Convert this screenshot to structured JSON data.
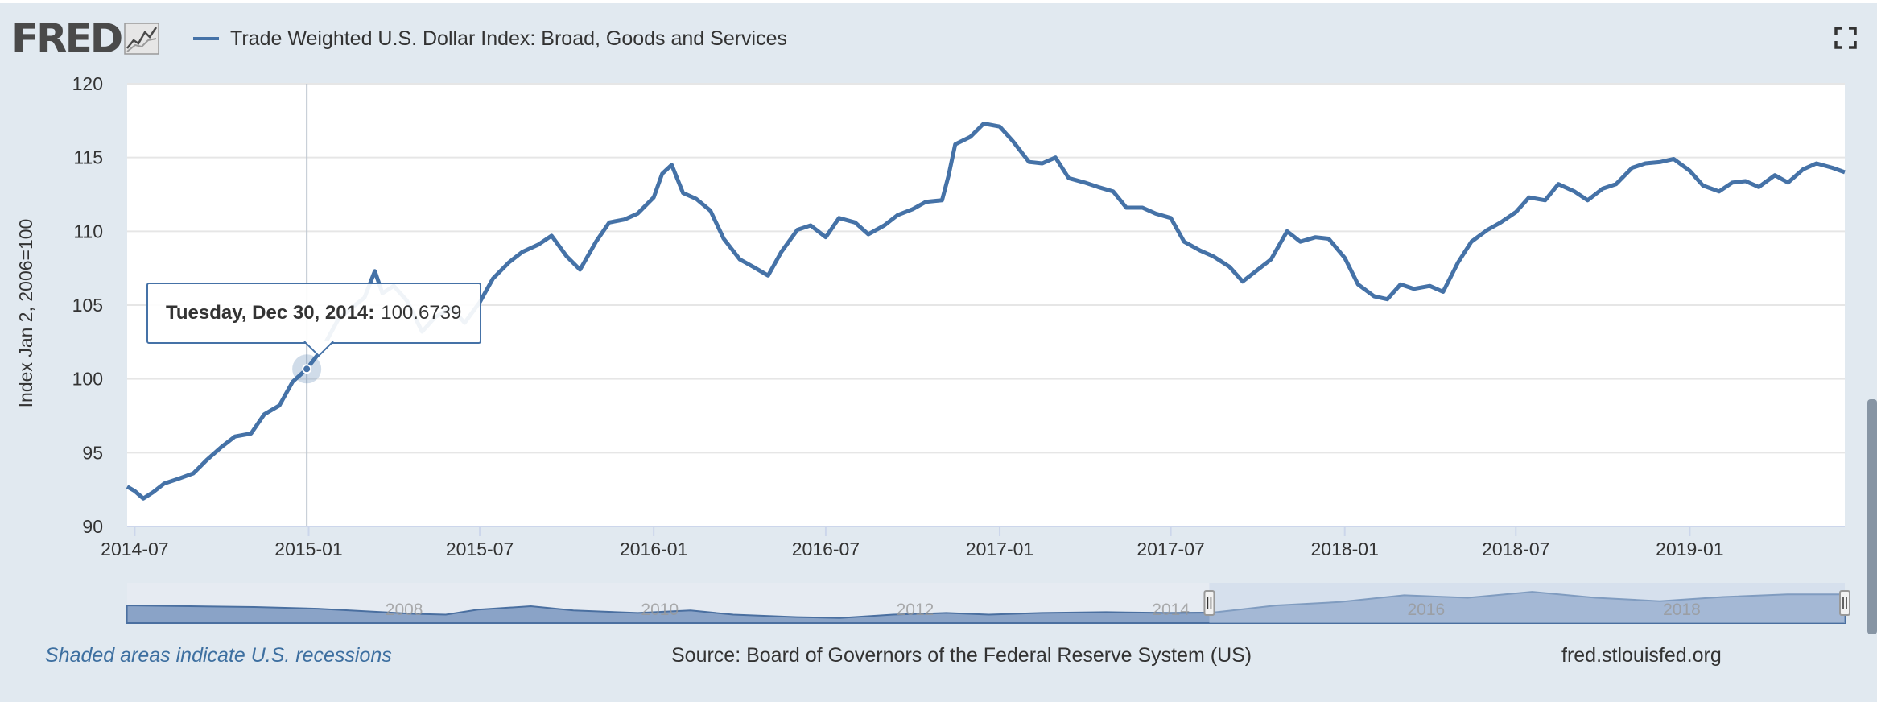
{
  "header": {
    "logo_text": "FRED",
    "series_title": "Trade Weighted U.S. Dollar Index: Broad, Goods and Services",
    "fullscreen_icon": "fullscreen-expand-icon"
  },
  "colors": {
    "line": "#4572a7",
    "background": "#e1e9f0",
    "plot_background": "#ffffff",
    "navigator_fill": "#8aa3c7",
    "navigator_mask": "#c4d2e6"
  },
  "tooltip": {
    "date": "Tuesday, Dec 30, 2014:",
    "value": "100.6739",
    "point": {
      "x": "2014-12-30",
      "y": 100.6739
    }
  },
  "chart_data": {
    "type": "line",
    "title": "",
    "xlabel": "",
    "ylabel": "Index Jan 2, 2006=100",
    "x_type": "date",
    "xlim": [
      "2014-06-23",
      "2019-06-14"
    ],
    "ylim": [
      90,
      120
    ],
    "yticks": [
      90,
      95,
      100,
      105,
      110,
      115,
      120
    ],
    "xticks": [
      "2014-07",
      "2015-01",
      "2015-07",
      "2016-01",
      "2016-07",
      "2017-01",
      "2017-07",
      "2018-01",
      "2018-07",
      "2019-01"
    ],
    "grid": true,
    "series": [
      {
        "name": "Trade Weighted U.S. Dollar Index: Broad, Goods and Services",
        "points": [
          [
            "2014-06-23",
            92.7
          ],
          [
            "2014-07-01",
            92.4
          ],
          [
            "2014-07-10",
            91.9
          ],
          [
            "2014-07-20",
            92.3
          ],
          [
            "2014-08-01",
            92.9
          ],
          [
            "2014-08-15",
            93.2
          ],
          [
            "2014-09-01",
            93.6
          ],
          [
            "2014-09-15",
            94.5
          ],
          [
            "2014-10-01",
            95.4
          ],
          [
            "2014-10-15",
            96.1
          ],
          [
            "2014-11-01",
            96.3
          ],
          [
            "2014-11-15",
            97.6
          ],
          [
            "2014-12-01",
            98.2
          ],
          [
            "2014-12-15",
            99.8
          ],
          [
            "2014-12-30",
            100.6739
          ],
          [
            "2015-01-15",
            102.0
          ],
          [
            "2015-02-01",
            104.0
          ],
          [
            "2015-02-15",
            104.8
          ],
          [
            "2015-03-01",
            105.5
          ],
          [
            "2015-03-12",
            107.3
          ],
          [
            "2015-03-20",
            105.8
          ],
          [
            "2015-04-01",
            106.3
          ],
          [
            "2015-04-15",
            105.3
          ],
          [
            "2015-05-01",
            103.2
          ],
          [
            "2015-05-15",
            104.2
          ],
          [
            "2015-06-01",
            104.8
          ],
          [
            "2015-06-15",
            103.8
          ],
          [
            "2015-07-01",
            105.2
          ],
          [
            "2015-07-15",
            106.8
          ],
          [
            "2015-08-01",
            107.9
          ],
          [
            "2015-08-15",
            108.6
          ],
          [
            "2015-09-01",
            109.1
          ],
          [
            "2015-09-15",
            109.7
          ],
          [
            "2015-10-01",
            108.3
          ],
          [
            "2015-10-15",
            107.4
          ],
          [
            "2015-11-01",
            109.3
          ],
          [
            "2015-11-15",
            110.6
          ],
          [
            "2015-12-01",
            110.8
          ],
          [
            "2015-12-15",
            111.2
          ],
          [
            "2016-01-01",
            112.3
          ],
          [
            "2016-01-10",
            113.9
          ],
          [
            "2016-01-20",
            114.5
          ],
          [
            "2016-02-01",
            112.6
          ],
          [
            "2016-02-15",
            112.2
          ],
          [
            "2016-03-01",
            111.4
          ],
          [
            "2016-03-15",
            109.5
          ],
          [
            "2016-04-01",
            108.1
          ],
          [
            "2016-04-15",
            107.6
          ],
          [
            "2016-05-01",
            107.0
          ],
          [
            "2016-05-15",
            108.6
          ],
          [
            "2016-06-01",
            110.1
          ],
          [
            "2016-06-15",
            110.4
          ],
          [
            "2016-07-01",
            109.6
          ],
          [
            "2016-07-15",
            110.9
          ],
          [
            "2016-08-01",
            110.6
          ],
          [
            "2016-08-15",
            109.8
          ],
          [
            "2016-09-01",
            110.4
          ],
          [
            "2016-09-15",
            111.1
          ],
          [
            "2016-10-01",
            111.5
          ],
          [
            "2016-10-15",
            112.0
          ],
          [
            "2016-11-01",
            112.1
          ],
          [
            "2016-11-08",
            113.8
          ],
          [
            "2016-11-15",
            115.9
          ],
          [
            "2016-12-01",
            116.4
          ],
          [
            "2016-12-15",
            117.3
          ],
          [
            "2017-01-01",
            117.1
          ],
          [
            "2017-01-15",
            116.1
          ],
          [
            "2017-02-01",
            114.7
          ],
          [
            "2017-02-15",
            114.6
          ],
          [
            "2017-03-01",
            115.0
          ],
          [
            "2017-03-15",
            113.6
          ],
          [
            "2017-04-01",
            113.3
          ],
          [
            "2017-04-15",
            113.0
          ],
          [
            "2017-05-01",
            112.7
          ],
          [
            "2017-05-15",
            111.6
          ],
          [
            "2017-06-01",
            111.6
          ],
          [
            "2017-06-15",
            111.2
          ],
          [
            "2017-07-01",
            110.9
          ],
          [
            "2017-07-15",
            109.3
          ],
          [
            "2017-08-01",
            108.7
          ],
          [
            "2017-08-15",
            108.3
          ],
          [
            "2017-09-01",
            107.6
          ],
          [
            "2017-09-15",
            106.6
          ],
          [
            "2017-10-01",
            107.4
          ],
          [
            "2017-10-15",
            108.1
          ],
          [
            "2017-11-01",
            110.0
          ],
          [
            "2017-11-15",
            109.3
          ],
          [
            "2017-12-01",
            109.6
          ],
          [
            "2017-12-15",
            109.5
          ],
          [
            "2018-01-01",
            108.2
          ],
          [
            "2018-01-15",
            106.4
          ],
          [
            "2018-02-01",
            105.6
          ],
          [
            "2018-02-15",
            105.4
          ],
          [
            "2018-03-01",
            106.4
          ],
          [
            "2018-03-15",
            106.1
          ],
          [
            "2018-04-01",
            106.3
          ],
          [
            "2018-04-15",
            105.9
          ],
          [
            "2018-05-01",
            107.9
          ],
          [
            "2018-05-15",
            109.3
          ],
          [
            "2018-06-01",
            110.1
          ],
          [
            "2018-06-15",
            110.6
          ],
          [
            "2018-07-01",
            111.3
          ],
          [
            "2018-07-15",
            112.3
          ],
          [
            "2018-08-01",
            112.1
          ],
          [
            "2018-08-15",
            113.2
          ],
          [
            "2018-09-01",
            112.7
          ],
          [
            "2018-09-15",
            112.1
          ],
          [
            "2018-10-01",
            112.9
          ],
          [
            "2018-10-15",
            113.2
          ],
          [
            "2018-11-01",
            114.3
          ],
          [
            "2018-11-15",
            114.6
          ],
          [
            "2018-12-01",
            114.7
          ],
          [
            "2018-12-15",
            114.9
          ],
          [
            "2019-01-01",
            114.1
          ],
          [
            "2019-01-15",
            113.1
          ],
          [
            "2019-02-01",
            112.7
          ],
          [
            "2019-02-15",
            113.3
          ],
          [
            "2019-03-01",
            113.4
          ],
          [
            "2019-03-15",
            113.0
          ],
          [
            "2019-04-01",
            113.8
          ],
          [
            "2019-04-15",
            113.3
          ],
          [
            "2019-05-01",
            114.2
          ],
          [
            "2019-05-15",
            114.6
          ],
          [
            "2019-06-01",
            114.3
          ],
          [
            "2019-06-14",
            114.0
          ]
        ]
      }
    ]
  },
  "navigator": {
    "labels": [
      "2008",
      "2010",
      "2012",
      "2014",
      "2016",
      "2018"
    ],
    "range": [
      "2006-01-02",
      "2019-06-14"
    ],
    "selected": [
      "2014-06-23",
      "2019-06-14"
    ],
    "points": [
      [
        "2006-01-01",
        101
      ],
      [
        "2006-07-01",
        100
      ],
      [
        "2007-01-01",
        99
      ],
      [
        "2007-07-01",
        97
      ],
      [
        "2008-01-01",
        93
      ],
      [
        "2008-04-01",
        91
      ],
      [
        "2008-07-01",
        90
      ],
      [
        "2008-10-01",
        96
      ],
      [
        "2009-03-01",
        100
      ],
      [
        "2009-07-01",
        95
      ],
      [
        "2010-01-01",
        92
      ],
      [
        "2010-06-01",
        95
      ],
      [
        "2010-10-01",
        90
      ],
      [
        "2011-04-01",
        87
      ],
      [
        "2011-08-01",
        86
      ],
      [
        "2012-01-01",
        90
      ],
      [
        "2012-06-01",
        92
      ],
      [
        "2012-10-01",
        90
      ],
      [
        "2013-03-01",
        92
      ],
      [
        "2013-09-01",
        93
      ],
      [
        "2014-03-01",
        92
      ],
      [
        "2014-07-01",
        92.4
      ],
      [
        "2015-01-01",
        101
      ],
      [
        "2015-07-01",
        105
      ],
      [
        "2016-01-01",
        113
      ],
      [
        "2016-07-01",
        110
      ],
      [
        "2017-01-01",
        117
      ],
      [
        "2017-07-01",
        110
      ],
      [
        "2018-01-01",
        106
      ],
      [
        "2018-07-01",
        111
      ],
      [
        "2019-01-01",
        114
      ],
      [
        "2019-06-14",
        114
      ]
    ]
  },
  "footer": {
    "recession_note": "Shaded areas indicate U.S. recessions",
    "source": "Source: Board of Governors of the Federal Reserve System (US)",
    "site": "fred.stlouisfed.org"
  }
}
